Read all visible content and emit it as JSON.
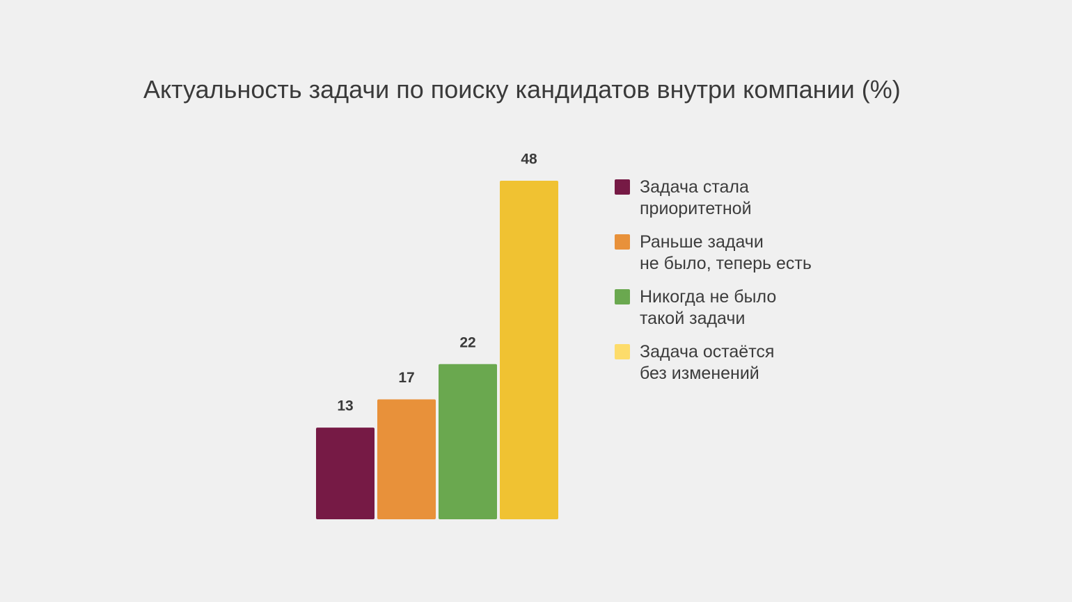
{
  "chart_data": {
    "type": "bar",
    "title": "Актуальность задачи по поиску кандидатов внутри компании (%)",
    "categories": [
      "Задача стала приоритетной",
      "Раньше задачи не было, теперь есть",
      "Никогда не было такой задачи",
      "Задача остаётся без изменений"
    ],
    "values": [
      13,
      17,
      22,
      48
    ],
    "data_labels": [
      "13",
      "17",
      "22",
      "48"
    ],
    "colors": [
      "#761a45",
      "#e8913a",
      "#6aa84f",
      "#f0c232"
    ],
    "ylim": [
      0,
      48
    ],
    "grid": false,
    "legend_position": "right"
  },
  "legend": {
    "items": [
      {
        "label": "Задача стала\nприоритетной",
        "color": "#761a45"
      },
      {
        "label": "Раньше задачи\nне было, теперь есть",
        "color": "#e8913a"
      },
      {
        "label": "Никогда не было\nтакой задачи",
        "color": "#6aa84f"
      },
      {
        "label": "Задача остаётся\nбез изменений",
        "color": "#fddc6b"
      }
    ]
  }
}
